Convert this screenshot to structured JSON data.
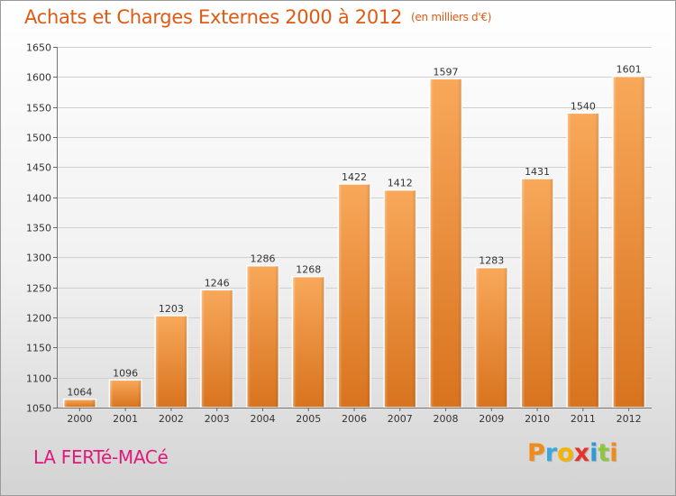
{
  "header": {
    "title": "Achats et Charges Externes 2000 à 2012",
    "unit": "(en milliers d'€)"
  },
  "footer": {
    "commune": "LA FERTé-MACé",
    "logo_letters": [
      "P",
      "r",
      "o",
      "x",
      "i",
      "t",
      "i"
    ],
    "logo_colors": [
      "#f08a18",
      "#3aa8dc",
      "#f5b400",
      "#e5322d",
      "#2e9ad6",
      "#8dc63f",
      "#f08a18"
    ]
  },
  "colors": {
    "title": "#e05a12",
    "commune": "#e0197a",
    "bar_top": "#f8a85a",
    "bar_bottom": "#d8731e"
  },
  "chart_data": {
    "type": "bar",
    "categories": [
      "2000",
      "2001",
      "2002",
      "2003",
      "2004",
      "2005",
      "2006",
      "2007",
      "2008",
      "2009",
      "2010",
      "2011",
      "2012"
    ],
    "values": [
      1064,
      1096,
      1203,
      1246,
      1286,
      1268,
      1422,
      1412,
      1597,
      1283,
      1431,
      1540,
      1601
    ],
    "ylim": [
      1050,
      1650
    ],
    "yticks": [
      1050,
      1100,
      1150,
      1200,
      1250,
      1300,
      1350,
      1400,
      1450,
      1500,
      1550,
      1600,
      1650
    ],
    "grid": true,
    "xlabel": "",
    "ylabel": ""
  }
}
